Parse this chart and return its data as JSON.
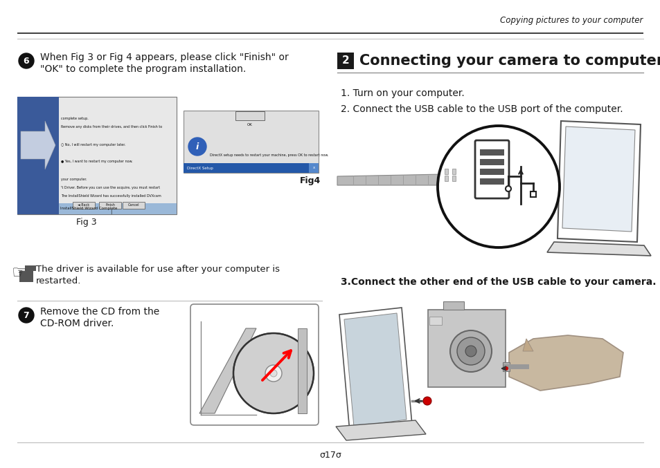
{
  "bg_color": "#ffffff",
  "header_line_color": "#3d3d3d",
  "header_text": "Copying pictures to your computer",
  "section2_title": "Connecting your camera to computer",
  "section2_num": "2",
  "left_step6_circle_label": "6",
  "left_step6_text1": "When Fig 3 or Fig 4 appears, please click \"Finish\" or",
  "left_step6_text2": "\"OK\" to complete the program installation.",
  "fig3_label": "Fig 3",
  "fig4_label": "Fig4",
  "note_text1": "The driver is available for use after your computer is",
  "note_text2": "restarted.",
  "step7_circle_label": "7",
  "step7_text1": "Remove the CD from the",
  "step7_text2": "CD-ROM driver.",
  "right_step1": "1. Turn on your computer.",
  "right_step2": "2. Connect the USB cable to the USB port of the computer.",
  "right_step3": "3.Connect the other end of the USB cable to your camera.",
  "page_num": "σ17σ",
  "section_num_bg": "#1a1a1a",
  "section_num_color": "#ffffff",
  "text_color": "#1a1a1a"
}
